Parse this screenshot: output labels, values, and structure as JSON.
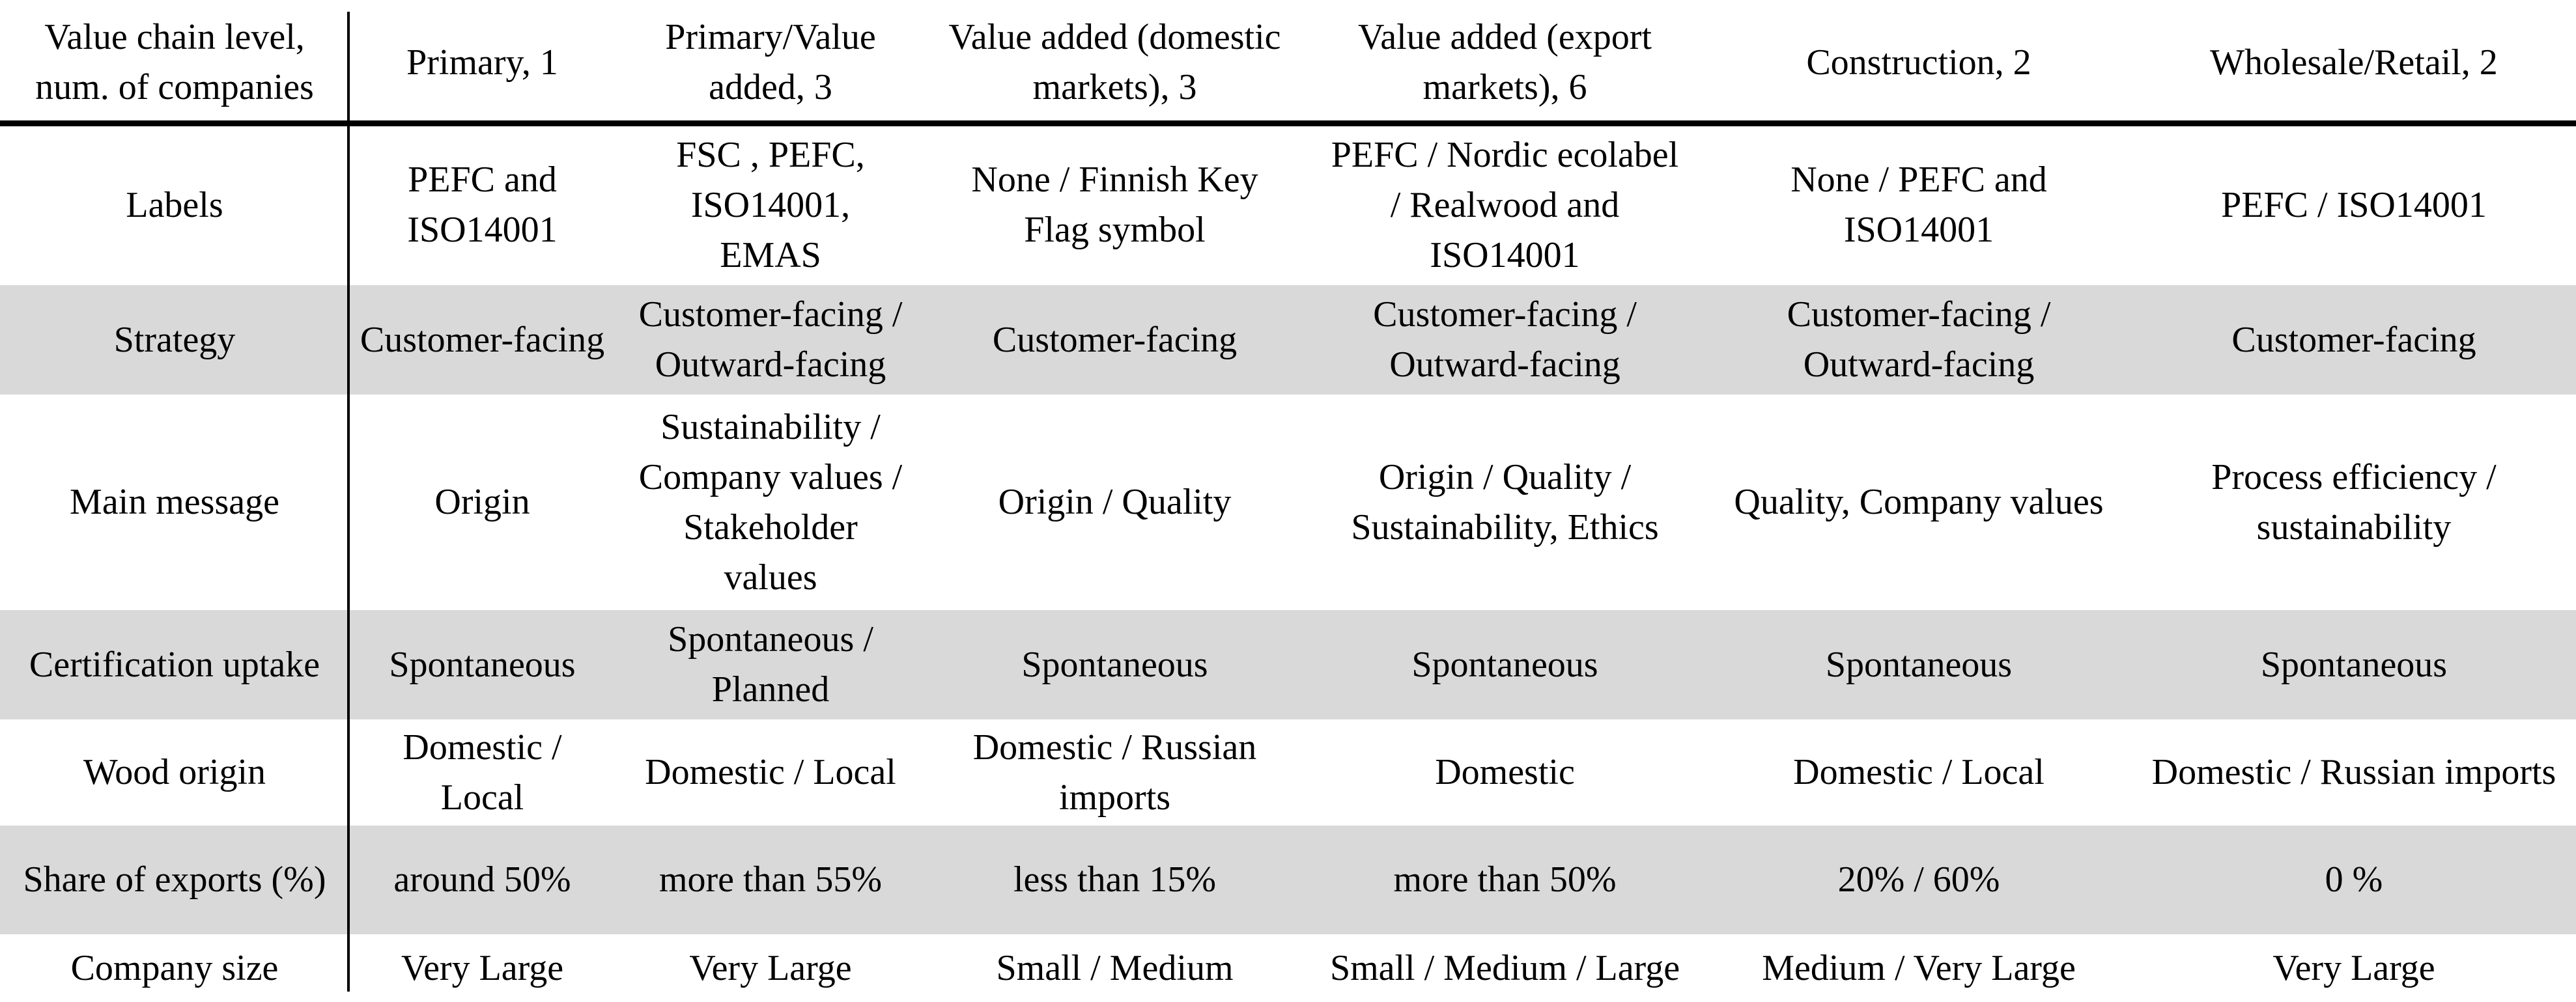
{
  "table": {
    "header": {
      "row_label": "Value chain level,\nnum. of companies",
      "columns": [
        "Primary, 1",
        "Primary/Value\nadded, 3",
        "Value added (domestic\nmarkets), 3",
        "Value added (export\nmarkets), 6",
        "Construction, 2",
        "Wholesale/Retail, 2"
      ]
    },
    "rows": [
      {
        "label": "Labels",
        "shaded": false,
        "cells": [
          "PEFC and\nISO14001",
          "FSC , PEFC,\nISO14001,\nEMAS",
          "None / Finnish Key\nFlag symbol",
          "PEFC / Nordic ecolabel\n/ Realwood and\nISO14001",
          "None / PEFC and\nISO14001",
          "PEFC / ISO14001"
        ]
      },
      {
        "label": "Strategy",
        "shaded": true,
        "cells": [
          "Customer-facing",
          "Customer-facing /\nOutward-facing",
          "Customer-facing",
          "Customer-facing /\nOutward-facing",
          "Customer-facing /\nOutward-facing",
          "Customer-facing"
        ]
      },
      {
        "label": "Main message",
        "shaded": false,
        "cells": [
          "Origin",
          "Sustainability /\nCompany values /\nStakeholder\nvalues",
          "Origin / Quality",
          "Origin / Quality /\nSustainability, Ethics",
          "Quality, Company values",
          "Process efficiency /\nsustainability"
        ]
      },
      {
        "label": "Certification uptake",
        "shaded": true,
        "cells": [
          "Spontaneous",
          "Spontaneous /\nPlanned",
          "Spontaneous",
          "Spontaneous",
          "Spontaneous",
          "Spontaneous"
        ]
      },
      {
        "label": "Wood origin",
        "shaded": false,
        "cells": [
          "Domestic /\nLocal",
          "Domestic / Local",
          "Domestic / Russian\nimports",
          "Domestic",
          "Domestic / Local",
          "Domestic / Russian imports"
        ]
      },
      {
        "label": "Share of exports (%)",
        "shaded": true,
        "cells": [
          "around 50%",
          "more than 55%",
          "less than 15%",
          "more than 50%",
          "20% / 60%",
          "0 %"
        ]
      },
      {
        "label": "Company size",
        "shaded": false,
        "cells": [
          "Very Large",
          "Very Large",
          "Small / Medium",
          "Small / Medium / Large",
          "Medium / Very Large",
          "Very Large"
        ]
      }
    ]
  },
  "colors": {
    "shaded_row_bg": "#d9d9d9",
    "text": "#000000",
    "background": "#ffffff",
    "rule": "#000000"
  },
  "chart_data": {
    "type": "table",
    "title": "",
    "columns": [
      "Value chain level, num. of companies",
      "Primary, 1",
      "Primary/Value added, 3",
      "Value added (domestic markets), 3",
      "Value added (export markets), 6",
      "Construction, 2",
      "Wholesale/Retail, 2"
    ],
    "rows": [
      [
        "Labels",
        "PEFC and ISO14001",
        "FSC , PEFC, ISO14001, EMAS",
        "None / Finnish Key Flag symbol",
        "PEFC / Nordic ecolabel / Realwood and ISO14001",
        "None / PEFC and ISO14001",
        "PEFC / ISO14001"
      ],
      [
        "Strategy",
        "Customer-facing",
        "Customer-facing / Outward-facing",
        "Customer-facing",
        "Customer-facing / Outward-facing",
        "Customer-facing / Outward-facing",
        "Customer-facing"
      ],
      [
        "Main message",
        "Origin",
        "Sustainability / Company values / Stakeholder values",
        "Origin / Quality",
        "Origin / Quality / Sustainability, Ethics",
        "Quality, Company values",
        "Process efficiency / sustainability"
      ],
      [
        "Certification uptake",
        "Spontaneous",
        "Spontaneous / Planned",
        "Spontaneous",
        "Spontaneous",
        "Spontaneous",
        "Spontaneous"
      ],
      [
        "Wood origin",
        "Domestic / Local",
        "Domestic / Local",
        "Domestic / Russian imports",
        "Domestic",
        "Domestic / Local",
        "Domestic / Russian imports"
      ],
      [
        "Share of exports (%)",
        "around 50%",
        "more than 55%",
        "less than 15%",
        "more than 50%",
        "20% / 60%",
        "0 %"
      ],
      [
        "Company size",
        "Very Large",
        "Very Large",
        "Small / Medium",
        "Small / Medium / Large",
        "Medium / Very Large",
        "Very Large"
      ]
    ]
  }
}
